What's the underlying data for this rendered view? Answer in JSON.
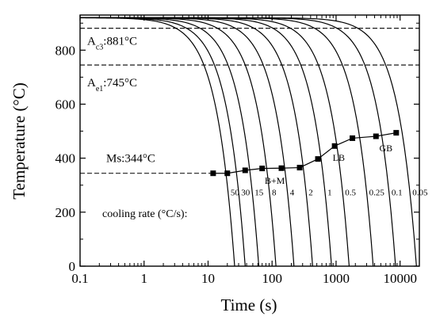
{
  "chart_data": {
    "type": "line",
    "xlabel": "Time (s)",
    "ylabel": "Temperature (°C)",
    "x_scale": "log",
    "xlim": [
      0.1,
      20000
    ],
    "ylim": [
      0,
      930
    ],
    "x_ticks": [
      {
        "value": 0.1,
        "label": "0.1"
      },
      {
        "value": 1,
        "label": "1"
      },
      {
        "value": 10,
        "label": "10"
      },
      {
        "value": 100,
        "label": "100"
      },
      {
        "value": 1000,
        "label": "1000"
      },
      {
        "value": 10000,
        "label": "10000"
      }
    ],
    "y_ticks": [
      {
        "value": 0,
        "label": "0"
      },
      {
        "value": 200,
        "label": "200"
      },
      {
        "value": 400,
        "label": "400"
      },
      {
        "value": 600,
        "label": "600"
      },
      {
        "value": 800,
        "label": "800"
      }
    ],
    "start_temperature": 920,
    "reference_lines": [
      {
        "value": 881,
        "label": "A",
        "subscript": "c3",
        "suffix": ":881°C"
      },
      {
        "value": 745,
        "label": "A",
        "subscript": "e1",
        "suffix": ":745°C"
      }
    ],
    "ms_line": {
      "value": 344,
      "label": "Ms:344°C"
    },
    "cooling_rate_title": "cooling rate (°C/s):",
    "cooling_curves": [
      {
        "rate": 50,
        "label": "50",
        "end_time": 26
      },
      {
        "rate": 30,
        "label": "30",
        "end_time": 38
      },
      {
        "rate": 15,
        "label": "15",
        "end_time": 62
      },
      {
        "rate": 8,
        "label": "8",
        "end_time": 115
      },
      {
        "rate": 4,
        "label": "4",
        "end_time": 220
      },
      {
        "rate": 2,
        "label": "2",
        "end_time": 430
      },
      {
        "rate": 1,
        "label": "1",
        "end_time": 850
      },
      {
        "rate": 0.5,
        "label": "0.5",
        "end_time": 1600
      },
      {
        "rate": 0.25,
        "label": "0.25",
        "end_time": 3800
      },
      {
        "rate": 0.1,
        "label": "0.1",
        "end_time": 8500
      },
      {
        "rate": 0.05,
        "label": "0.05",
        "end_time": 18000
      }
    ],
    "transformation_start_points": [
      {
        "time": 12,
        "temperature": 344
      },
      {
        "time": 20,
        "temperature": 344
      },
      {
        "time": 38,
        "temperature": 355
      },
      {
        "time": 70,
        "temperature": 362
      },
      {
        "time": 140,
        "temperature": 363
      },
      {
        "time": 270,
        "temperature": 365
      },
      {
        "time": 520,
        "temperature": 397
      },
      {
        "time": 950,
        "temperature": 445
      },
      {
        "time": 1800,
        "temperature": 474
      },
      {
        "time": 4200,
        "temperature": 481
      },
      {
        "time": 8700,
        "temperature": 494
      }
    ],
    "phase_labels": [
      {
        "text": "B+M",
        "time": 110,
        "temperature": 305
      },
      {
        "text": "LB",
        "time": 1100,
        "temperature": 390
      },
      {
        "text": "GB",
        "time": 6000,
        "temperature": 425
      }
    ]
  }
}
